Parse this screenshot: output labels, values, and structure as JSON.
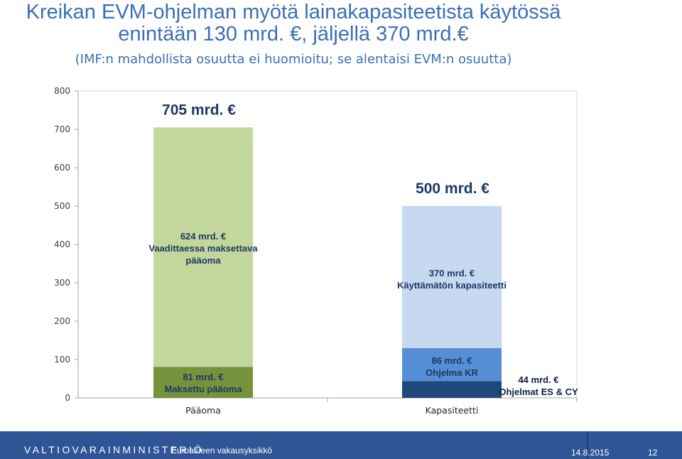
{
  "slide": {
    "title": "Kreikan EVM-ohjelman myötä lainakapasiteetista käytössä enintään 130 mrd. €, jäljellä 370 mrd.€",
    "subtitle": "(IMF:n mahdollista osuutta ei huomioitu; se alentaisi EVM:n osuutta)"
  },
  "chart_data": {
    "type": "bar",
    "stacked": true,
    "categories": [
      "Pääoma",
      "Kapasiteetti"
    ],
    "ylim": [
      0,
      800
    ],
    "yticks": [
      0,
      100,
      200,
      300,
      400,
      500,
      600,
      700,
      800
    ],
    "grid": false,
    "series": [
      {
        "category": "Pääoma",
        "value": 81,
        "label_lines": [
          "81 mrd. €",
          "Maksettu pääoma"
        ],
        "color": "#76923c"
      },
      {
        "category": "Pääoma",
        "value": 624,
        "label_lines": [
          "624 mrd. €",
          "Vaadittaessa maksettava",
          "pääoma"
        ],
        "color": "#c3d69b"
      },
      {
        "category": "Kapasiteetti",
        "value": 44,
        "label_lines": [
          "44 mrd. €",
          "Ohjelmat ES & CY"
        ],
        "color": "#1f497d"
      },
      {
        "category": "Kapasiteetti",
        "value": 86,
        "label_lines": [
          "86 mrd. €",
          "Ohjelma KR"
        ],
        "color": "#558ed5"
      },
      {
        "category": "Kapasiteetti",
        "value": 370,
        "label_lines": [
          "370 mrd. €",
          "Käyttämätön kapasiteetti"
        ],
        "color": "#c6d9f1"
      }
    ],
    "totals": [
      {
        "category": "Pääoma",
        "label": "705 mrd. €"
      },
      {
        "category": "Kapasiteetti",
        "label": "500 mrd. €"
      }
    ]
  },
  "footer": {
    "ministry": "VALTIOVARAINMINISTERIÖ",
    "unit": "Euroalueen vakausyksikkö",
    "date": "14.8.2015",
    "page": "12"
  }
}
